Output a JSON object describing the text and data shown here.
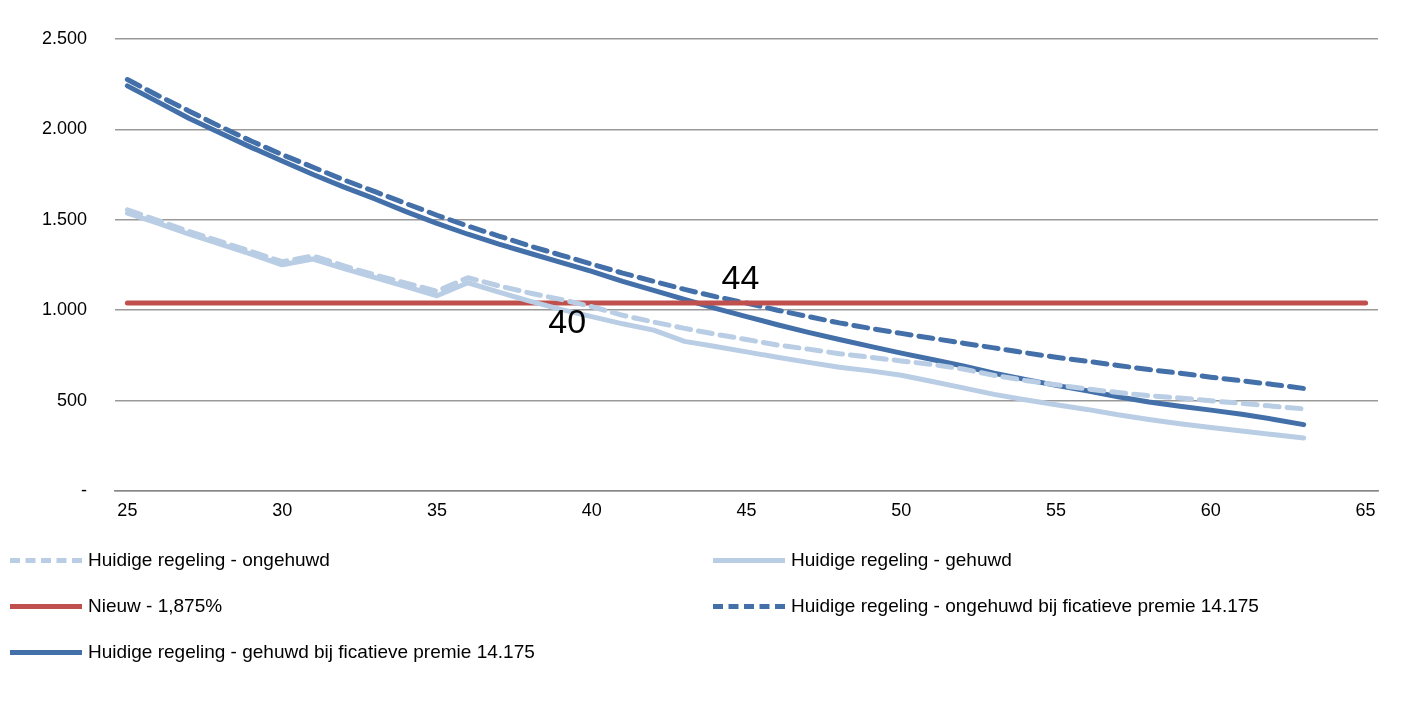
{
  "chart_data": {
    "type": "line",
    "x": [
      25,
      26,
      27,
      28,
      29,
      30,
      31,
      32,
      33,
      34,
      35,
      36,
      37,
      38,
      39,
      40,
      41,
      42,
      43,
      44,
      45,
      46,
      47,
      48,
      49,
      50,
      51,
      52,
      53,
      54,
      55,
      56,
      57,
      58,
      59,
      60,
      61,
      62,
      63
    ],
    "xlim": [
      24.6,
      65.4
    ],
    "xticks": [
      25,
      30,
      35,
      40,
      45,
      50,
      55,
      60,
      65
    ],
    "ylim": [
      0,
      2500
    ],
    "yticks": [
      {
        "value": 0,
        "label": "-"
      },
      {
        "value": 500,
        "label": "500"
      },
      {
        "value": 1000,
        "label": "1.000"
      },
      {
        "value": 1500,
        "label": "1.500"
      },
      {
        "value": 2000,
        "label": "2.000"
      },
      {
        "value": 2500,
        "label": "2.500"
      }
    ],
    "grid": "y",
    "legend": "bottom",
    "marker": "none",
    "annotations": [
      {
        "text": "40",
        "x": 39.4,
        "y": 1040
      },
      {
        "text": "44",
        "x": 45,
        "y": 1040
      }
    ],
    "series": [
      {
        "name": "Huidige regeling - ongehuwd",
        "color": "#b9cde5",
        "line_style": "dashed",
        "values": [
          1555,
          1495,
          1435,
          1380,
          1325,
          1268,
          1300,
          1245,
          1195,
          1150,
          1105,
          1180,
          1135,
          1095,
          1060,
          1020,
          972,
          935,
          900,
          868,
          838,
          808,
          785,
          760,
          740,
          720,
          700,
          675,
          640,
          612,
          588,
          565,
          545,
          528,
          515,
          500,
          485,
          470,
          455
        ]
      },
      {
        "name": "Huidige regeling - gehuwd",
        "color": "#b9cde5",
        "line_style": "solid",
        "values": [
          1536,
          1480,
          1420,
          1365,
          1310,
          1251,
          1283,
          1230,
          1180,
          1130,
          1080,
          1152,
          1100,
          1050,
          1005,
          965,
          925,
          890,
          828,
          800,
          770,
          740,
          712,
          685,
          665,
          641,
          606,
          571,
          535,
          505,
          478,
          452,
          422,
          396,
          373,
          352,
          333,
          313,
          294
        ]
      },
      {
        "name": "Nieuw - 1,875%",
        "color": "#c0504d",
        "line_style": "solid",
        "x": [
          25,
          65
        ],
        "values": [
          1040,
          1040
        ]
      },
      {
        "name": "Huidige regeling - ongehuwd bij ficatieve premie 14.175",
        "color": "#4470aa",
        "line_style": "dashed",
        "values": [
          2275,
          2185,
          2100,
          2015,
          1935,
          1860,
          1790,
          1720,
          1655,
          1590,
          1525,
          1465,
          1410,
          1355,
          1305,
          1255,
          1205,
          1160,
          1115,
          1075,
          1040,
          1000,
          965,
          930,
          900,
          872,
          845,
          818,
          792,
          765,
          740,
          718,
          695,
          672,
          652,
          630,
          610,
          590,
          568
        ]
      },
      {
        "name": "Huidige regeling - gehuwd bij ficatieve premie 14.175",
        "color": "#4470aa",
        "line_style": "solid",
        "values": [
          2240,
          2150,
          2060,
          1980,
          1900,
          1825,
          1750,
          1680,
          1615,
          1545,
          1480,
          1420,
          1365,
          1315,
          1265,
          1215,
          1160,
          1110,
          1060,
          1010,
          965,
          920,
          878,
          838,
          800,
          763,
          728,
          692,
          652,
          618,
          585,
          555,
          522,
          493,
          470,
          448,
          425,
          398,
          368
        ]
      }
    ]
  }
}
